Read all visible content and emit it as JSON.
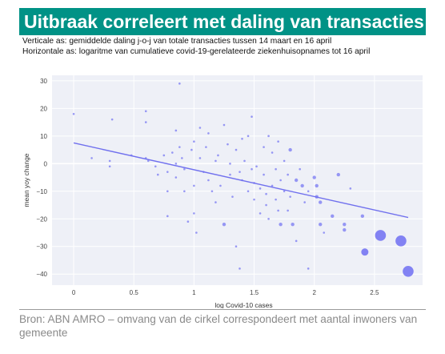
{
  "header": {
    "title": "Uitbraak correleert met daling van transacties",
    "subtitle_y": "Verticale as: gemiddelde daling j-o-j van totale transacties tussen 14 maart en 16 april",
    "subtitle_x": "Horizontale as: logaritme van cumulatieve covid-19-gerelateerde ziekenhuisopnames tot 16 april"
  },
  "footer": {
    "source": "Bron: ABN AMRO – omvang van de cirkel correspondeert met aantal inwoners van gemeente"
  },
  "colors": {
    "banner": "#009286",
    "points": "#6f6ff2",
    "trend": "#7070ee",
    "plot_bg": "#eef0f7",
    "grid": "#ffffff"
  },
  "chart_data": {
    "type": "scatter",
    "xlabel": "log Covid-10 cases",
    "ylabel": "mean yoy change",
    "xlim": [
      -0.18,
      2.9
    ],
    "ylim": [
      -44,
      32
    ],
    "x_ticks": [
      0,
      0.5,
      1,
      1.5,
      2,
      2.5
    ],
    "x_tick_labels": [
      "0",
      "0.5",
      "1",
      "1.5",
      "2",
      "2.5"
    ],
    "y_ticks": [
      30,
      20,
      10,
      0,
      -10,
      -20,
      -30,
      -40
    ],
    "y_tick_labels": [
      "30",
      "20",
      "10",
      "0",
      "−10",
      "−20",
      "−30",
      "−40"
    ],
    "grid": true,
    "trendline": {
      "x": [
        0,
        2.78
      ],
      "y": [
        7.5,
        -19.5
      ]
    },
    "points": [
      {
        "x": 0.0,
        "y": 18,
        "s": 1
      },
      {
        "x": 0.3,
        "y": 1,
        "s": 1
      },
      {
        "x": 0.3,
        "y": -1,
        "s": 1
      },
      {
        "x": 0.32,
        "y": 16,
        "s": 1
      },
      {
        "x": 0.48,
        "y": 3,
        "s": 1
      },
      {
        "x": 0.6,
        "y": 19,
        "s": 1
      },
      {
        "x": 0.6,
        "y": 15,
        "s": 1
      },
      {
        "x": 0.6,
        "y": 2,
        "s": 1
      },
      {
        "x": 0.62,
        "y": 1,
        "s": 1
      },
      {
        "x": 0.68,
        "y": -1,
        "s": 1
      },
      {
        "x": 0.7,
        "y": -4,
        "s": 1
      },
      {
        "x": 0.75,
        "y": 3,
        "s": 1
      },
      {
        "x": 0.78,
        "y": -3,
        "s": 1
      },
      {
        "x": 0.78,
        "y": -10,
        "s": 1
      },
      {
        "x": 0.78,
        "y": -19,
        "s": 1
      },
      {
        "x": 0.82,
        "y": 4,
        "s": 1
      },
      {
        "x": 0.85,
        "y": 12,
        "s": 1
      },
      {
        "x": 0.85,
        "y": 0,
        "s": 1
      },
      {
        "x": 0.85,
        "y": -5,
        "s": 1
      },
      {
        "x": 0.88,
        "y": 6,
        "s": 1
      },
      {
        "x": 0.88,
        "y": 29,
        "s": 1
      },
      {
        "x": 0.9,
        "y": 2,
        "s": 1
      },
      {
        "x": 0.92,
        "y": -2,
        "s": 1
      },
      {
        "x": 0.92,
        "y": -10,
        "s": 1
      },
      {
        "x": 0.95,
        "y": -21,
        "s": 1
      },
      {
        "x": 0.98,
        "y": 5,
        "s": 1
      },
      {
        "x": 1.0,
        "y": 8,
        "s": 1
      },
      {
        "x": 1.0,
        "y": -8,
        "s": 1
      },
      {
        "x": 1.0,
        "y": -18,
        "s": 1
      },
      {
        "x": 1.02,
        "y": -25,
        "s": 1
      },
      {
        "x": 1.05,
        "y": 13,
        "s": 1
      },
      {
        "x": 1.05,
        "y": 2,
        "s": 1
      },
      {
        "x": 1.08,
        "y": -3,
        "s": 1
      },
      {
        "x": 1.1,
        "y": 6,
        "s": 1
      },
      {
        "x": 1.12,
        "y": -6,
        "s": 1
      },
      {
        "x": 1.15,
        "y": -10,
        "s": 1
      },
      {
        "x": 1.18,
        "y": 1,
        "s": 1
      },
      {
        "x": 1.18,
        "y": -14,
        "s": 1
      },
      {
        "x": 1.2,
        "y": 3,
        "s": 1
      },
      {
        "x": 1.22,
        "y": -8,
        "s": 1
      },
      {
        "x": 1.25,
        "y": -22,
        "s": 2
      },
      {
        "x": 1.28,
        "y": 7,
        "s": 1
      },
      {
        "x": 1.3,
        "y": 0,
        "s": 1
      },
      {
        "x": 1.3,
        "y": -4,
        "s": 1
      },
      {
        "x": 1.32,
        "y": -12,
        "s": 1
      },
      {
        "x": 1.35,
        "y": 5,
        "s": 1
      },
      {
        "x": 1.35,
        "y": -30,
        "s": 1
      },
      {
        "x": 1.38,
        "y": -3,
        "s": 1
      },
      {
        "x": 1.38,
        "y": -38,
        "s": 1
      },
      {
        "x": 1.4,
        "y": -6,
        "s": 1
      },
      {
        "x": 1.42,
        "y": 1,
        "s": 1
      },
      {
        "x": 1.45,
        "y": 10,
        "s": 1
      },
      {
        "x": 1.45,
        "y": -10,
        "s": 1
      },
      {
        "x": 1.48,
        "y": -2,
        "s": 1
      },
      {
        "x": 1.48,
        "y": 17,
        "s": 1
      },
      {
        "x": 1.5,
        "y": -7,
        "s": 1
      },
      {
        "x": 1.5,
        "y": -13,
        "s": 1
      },
      {
        "x": 1.52,
        "y": -1,
        "s": 1
      },
      {
        "x": 1.55,
        "y": -9,
        "s": 1
      },
      {
        "x": 1.55,
        "y": -18,
        "s": 1
      },
      {
        "x": 1.58,
        "y": 6,
        "s": 1
      },
      {
        "x": 1.58,
        "y": -4,
        "s": 1
      },
      {
        "x": 1.6,
        "y": -11,
        "s": 1
      },
      {
        "x": 1.6,
        "y": -15,
        "s": 1
      },
      {
        "x": 1.62,
        "y": -20,
        "s": 1
      },
      {
        "x": 1.65,
        "y": 4,
        "s": 1
      },
      {
        "x": 1.65,
        "y": -8,
        "s": 1
      },
      {
        "x": 1.68,
        "y": -2,
        "s": 1
      },
      {
        "x": 1.68,
        "y": -13,
        "s": 1
      },
      {
        "x": 1.7,
        "y": -17,
        "s": 1
      },
      {
        "x": 1.72,
        "y": -6,
        "s": 1
      },
      {
        "x": 1.72,
        "y": -22,
        "s": 2
      },
      {
        "x": 1.75,
        "y": 1,
        "s": 1
      },
      {
        "x": 1.75,
        "y": -10,
        "s": 1
      },
      {
        "x": 1.78,
        "y": -4,
        "s": 1
      },
      {
        "x": 1.78,
        "y": -17,
        "s": 1
      },
      {
        "x": 1.8,
        "y": 5,
        "s": 2
      },
      {
        "x": 1.8,
        "y": -12,
        "s": 1
      },
      {
        "x": 1.82,
        "y": -22,
        "s": 2
      },
      {
        "x": 1.85,
        "y": -6,
        "s": 2
      },
      {
        "x": 1.85,
        "y": -28,
        "s": 1
      },
      {
        "x": 1.88,
        "y": -2,
        "s": 1
      },
      {
        "x": 1.9,
        "y": -8,
        "s": 2
      },
      {
        "x": 1.92,
        "y": -14,
        "s": 1
      },
      {
        "x": 1.95,
        "y": -10,
        "s": 1
      },
      {
        "x": 1.95,
        "y": -38,
        "s": 1
      },
      {
        "x": 2.0,
        "y": -5,
        "s": 2
      },
      {
        "x": 2.02,
        "y": -8,
        "s": 2
      },
      {
        "x": 2.02,
        "y": -12,
        "s": 2
      },
      {
        "x": 2.05,
        "y": -14,
        "s": 2
      },
      {
        "x": 2.05,
        "y": -22,
        "s": 2
      },
      {
        "x": 2.08,
        "y": -25,
        "s": 1
      },
      {
        "x": 2.15,
        "y": -19,
        "s": 2
      },
      {
        "x": 2.2,
        "y": -4,
        "s": 2
      },
      {
        "x": 2.25,
        "y": -22,
        "s": 2
      },
      {
        "x": 2.25,
        "y": -24,
        "s": 2
      },
      {
        "x": 2.3,
        "y": -9,
        "s": 1
      },
      {
        "x": 2.4,
        "y": -19,
        "s": 2
      },
      {
        "x": 2.42,
        "y": -32,
        "s": 3
      },
      {
        "x": 2.55,
        "y": -26,
        "s": 4
      },
      {
        "x": 2.72,
        "y": -28,
        "s": 4
      },
      {
        "x": 2.78,
        "y": -39,
        "s": 4
      },
      {
        "x": 0.15,
        "y": 2,
        "s": 1
      },
      {
        "x": 1.12,
        "y": 11,
        "s": 1
      },
      {
        "x": 1.25,
        "y": 14,
        "s": 1
      },
      {
        "x": 1.4,
        "y": 9,
        "s": 1
      },
      {
        "x": 1.62,
        "y": 10,
        "s": 1
      },
      {
        "x": 1.7,
        "y": 8,
        "s": 1
      }
    ]
  }
}
